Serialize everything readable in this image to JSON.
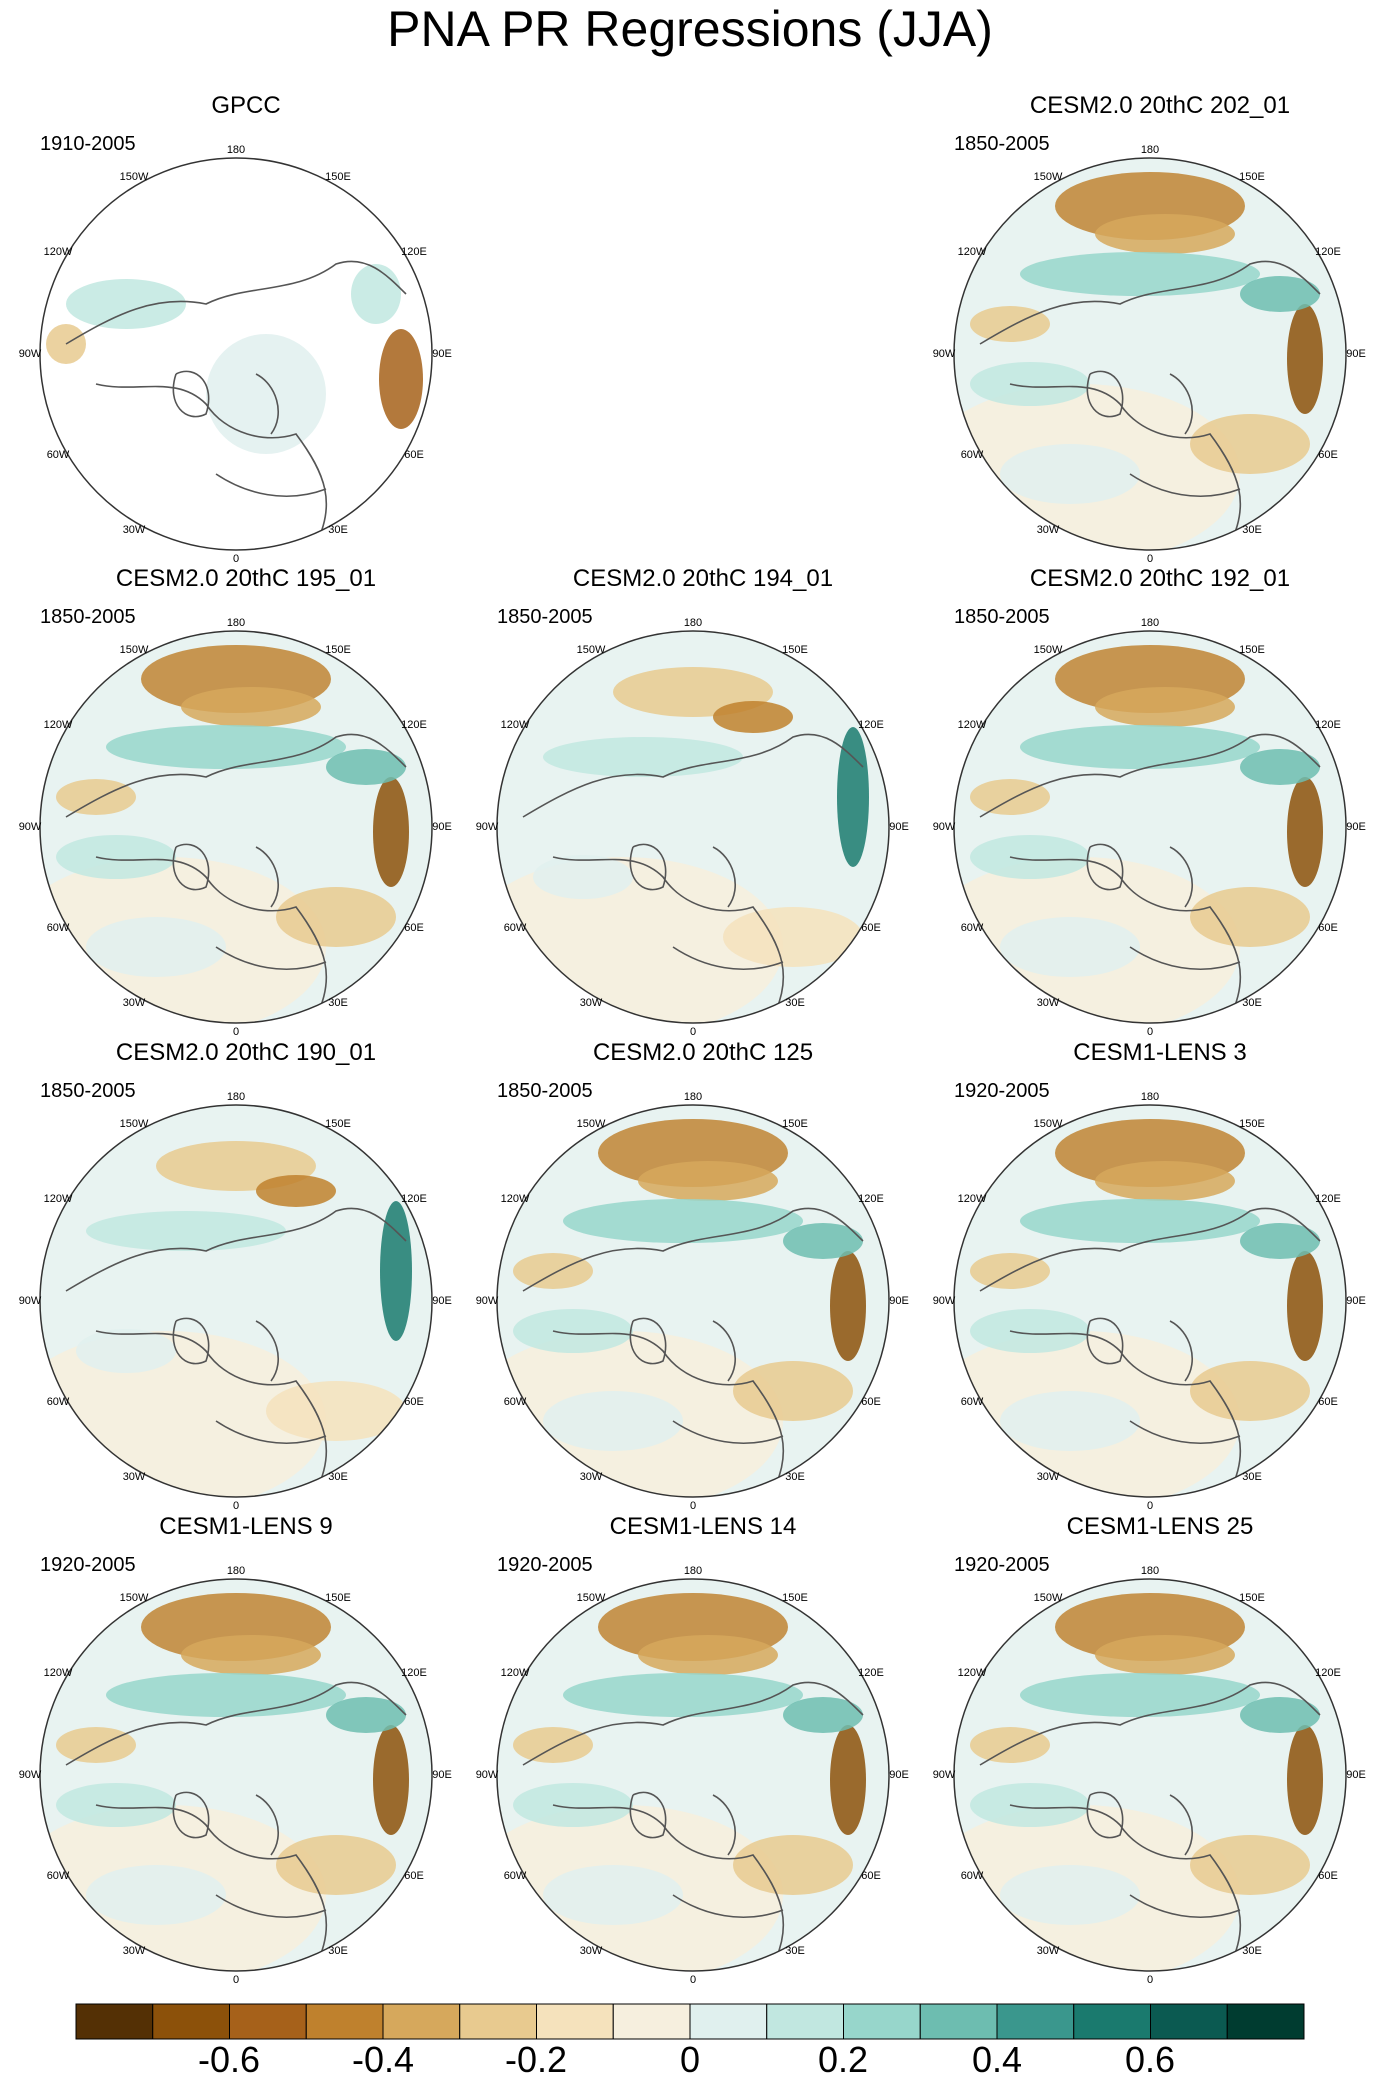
{
  "title": "PNA PR Regressions (JJA)",
  "tick_labels": {
    "top": "180",
    "bottom": "0",
    "upper_left": "150W",
    "upper_right": "150E",
    "mid_upper_left": "120W",
    "mid_upper_right": "120E",
    "left": "90W",
    "right": "90E",
    "mid_lower_left": "60W",
    "mid_lower_right": "60E",
    "lower_left": "30W",
    "lower_right": "30E"
  },
  "panels": [
    {
      "title": "GPCC",
      "period": "1910-2005"
    },
    {
      "title": "CESM2.0 20thC 202_01",
      "period": "1850-2005"
    },
    {
      "title": "CESM2.0 20thC 195_01",
      "period": "1850-2005"
    },
    {
      "title": "CESM2.0 20thC 194_01",
      "period": "1850-2005"
    },
    {
      "title": "CESM2.0 20thC 192_01",
      "period": "1850-2005"
    },
    {
      "title": "CESM2.0 20thC 190_01",
      "period": "1850-2005"
    },
    {
      "title": "CESM2.0 20thC 125",
      "period": "1850-2005"
    },
    {
      "title": "CESM1-LENS 3",
      "period": "1920-2005"
    },
    {
      "title": "CESM1-LENS 9",
      "period": "1920-2005"
    },
    {
      "title": "CESM1-LENS 14",
      "period": "1920-2005"
    },
    {
      "title": "CESM1-LENS 25",
      "period": "1920-2005"
    }
  ],
  "colorbar": {
    "colors": [
      "#543005",
      "#8c510a",
      "#a6611a",
      "#bf812d",
      "#d6a85c",
      "#e8ca8f",
      "#f5e2bc",
      "#f6efde",
      "#e0f0ee",
      "#c1e7e0",
      "#97d6cb",
      "#6dbdb0",
      "#3a978d",
      "#1a7a6e",
      "#0b5a51",
      "#003c30"
    ],
    "labels": [
      "-0.6",
      "-0.4",
      "-0.2",
      "0",
      "0.2",
      "0.4",
      "0.6"
    ]
  }
}
